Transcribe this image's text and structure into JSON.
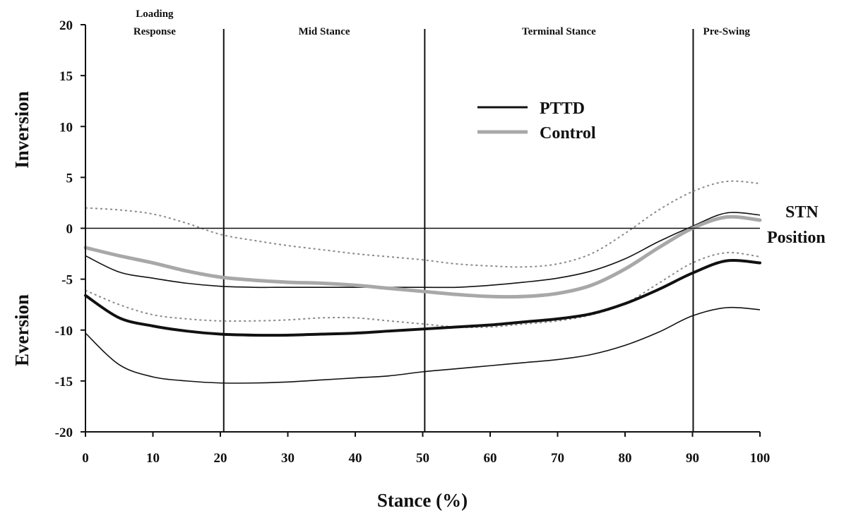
{
  "chart_data": {
    "type": "line",
    "xlabel": "Stance (%)",
    "ylabel_upper": "Inversion",
    "ylabel_lower": "Eversion",
    "xlim": [
      0,
      100
    ],
    "ylim": [
      -20,
      20
    ],
    "x_ticks": [
      0,
      10,
      20,
      30,
      40,
      50,
      60,
      70,
      80,
      90,
      100
    ],
    "y_ticks": [
      20,
      15,
      10,
      5,
      0,
      -5,
      -10,
      -15,
      -20
    ],
    "grid": false,
    "legend_position": "upper-right",
    "reference_line": {
      "y": 0,
      "label_line1": "STN",
      "label_line2": "Position"
    },
    "phases": [
      {
        "label_line1": "Loading",
        "label_line2": "Response",
        "start": 0,
        "end": 20.5
      },
      {
        "label_line1": "Mid Stance",
        "label_line2": "",
        "start": 20.5,
        "end": 50.3
      },
      {
        "label_line1": "Terminal Stance",
        "label_line2": "",
        "start": 50.3,
        "end": 90.1
      },
      {
        "label_line1": "Pre-Swing",
        "label_line2": "",
        "start": 90.1,
        "end": 100
      }
    ],
    "x": [
      0,
      5,
      10,
      15,
      20,
      25,
      30,
      35,
      40,
      45,
      50,
      55,
      60,
      65,
      70,
      75,
      80,
      85,
      90,
      95,
      100
    ],
    "series": [
      {
        "name": "PTTD",
        "color": "#111111",
        "values": [
          -6.6,
          -8.8,
          -9.6,
          -10.1,
          -10.4,
          -10.5,
          -10.5,
          -10.4,
          -10.3,
          -10.1,
          -9.9,
          -9.7,
          -9.5,
          -9.2,
          -8.9,
          -8.4,
          -7.4,
          -6.0,
          -4.4,
          -3.2,
          -3.4
        ],
        "band_upper": [
          -2.7,
          -4.3,
          -4.9,
          -5.4,
          -5.7,
          -5.8,
          -5.8,
          -5.8,
          -5.8,
          -5.8,
          -5.8,
          -5.8,
          -5.6,
          -5.3,
          -4.9,
          -4.2,
          -3.0,
          -1.3,
          0.2,
          1.5,
          1.3
        ],
        "band_lower": [
          -10.3,
          -13.4,
          -14.6,
          -15.0,
          -15.2,
          -15.2,
          -15.1,
          -14.9,
          -14.7,
          -14.5,
          -14.1,
          -13.8,
          -13.5,
          -13.2,
          -12.9,
          -12.4,
          -11.5,
          -10.2,
          -8.6,
          -7.8,
          -8.0
        ]
      },
      {
        "name": "Control",
        "color": "#a8a8a8",
        "values": [
          -1.9,
          -2.7,
          -3.4,
          -4.2,
          -4.8,
          -5.1,
          -5.3,
          -5.4,
          -5.6,
          -5.9,
          -6.2,
          -6.5,
          -6.7,
          -6.7,
          -6.4,
          -5.6,
          -4.0,
          -1.9,
          0.0,
          1.1,
          0.8
        ],
        "band_upper": [
          2.0,
          1.8,
          1.4,
          0.5,
          -0.6,
          -1.2,
          -1.7,
          -2.1,
          -2.5,
          -2.8,
          -3.1,
          -3.5,
          -3.7,
          -3.8,
          -3.5,
          -2.5,
          -0.5,
          1.8,
          3.6,
          4.6,
          4.4
        ],
        "band_lower": [
          -6.1,
          -7.5,
          -8.5,
          -8.9,
          -9.1,
          -9.1,
          -9.0,
          -8.8,
          -8.8,
          -9.1,
          -9.4,
          -9.7,
          -9.7,
          -9.4,
          -9.1,
          -8.5,
          -7.4,
          -5.4,
          -3.4,
          -2.4,
          -2.8
        ]
      }
    ]
  }
}
